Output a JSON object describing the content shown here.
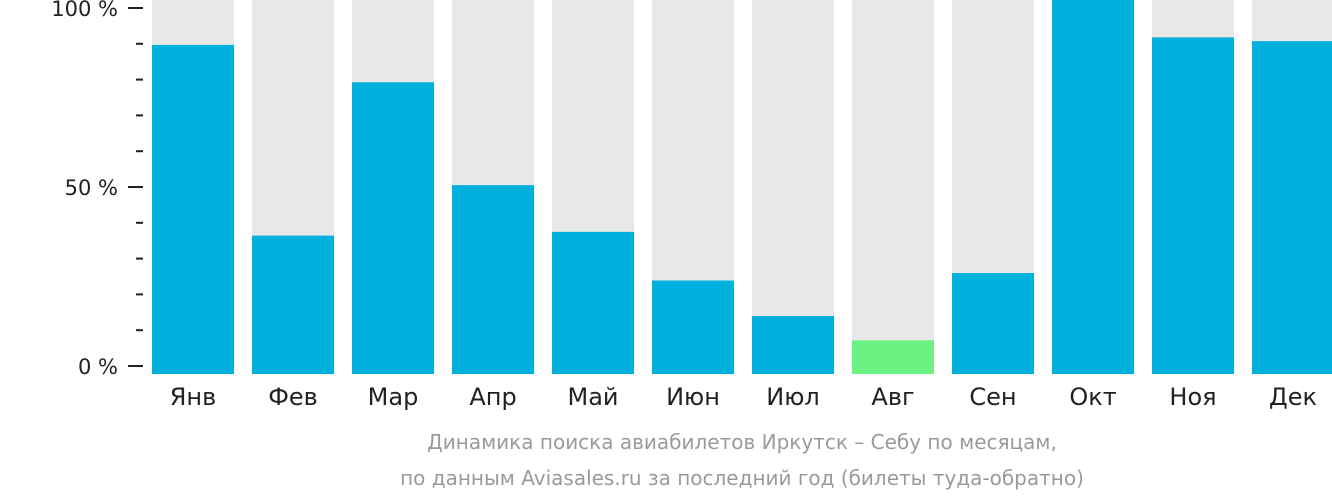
{
  "chart_data": {
    "type": "bar",
    "categories": [
      "Янв",
      "Фев",
      "Мар",
      "Апр",
      "Май",
      "Июн",
      "Июл",
      "Авг",
      "Сен",
      "Окт",
      "Ноя",
      "Дек"
    ],
    "values": [
      88,
      37,
      78,
      50.5,
      38,
      25,
      15.5,
      9,
      27,
      100,
      90,
      89
    ],
    "highlight_index": 7,
    "ylim": [
      0,
      100
    ],
    "yticks": [
      {
        "value": 0,
        "label": "0 %"
      },
      {
        "value": 50,
        "label": "50 %"
      },
      {
        "value": 100,
        "label": "100 %"
      }
    ],
    "minor_tick_step": 10,
    "colors": {
      "bar": "#00b1dd",
      "highlight": "#6cf283",
      "background_bar": "#e8e8e8",
      "axis": "#222222",
      "caption": "#9a9a9a"
    },
    "caption_line1": "Динамика поиска авиабилетов Иркутск – Себу по месяцам,",
    "caption_line2": "по данным Aviasales.ru за последний год (билеты туда-обратно)"
  }
}
